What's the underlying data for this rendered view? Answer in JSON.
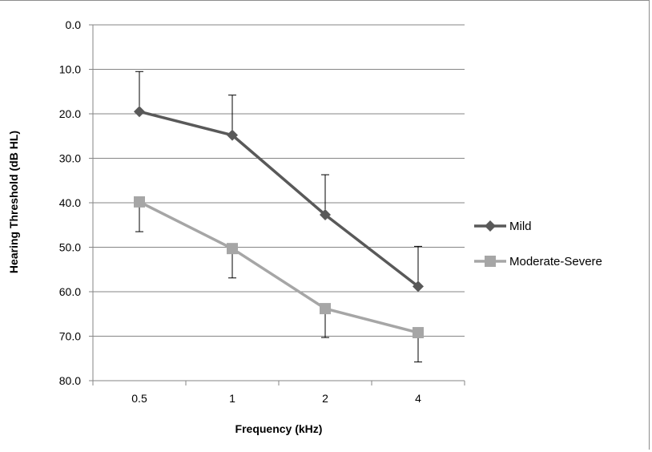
{
  "chart_data": {
    "type": "line",
    "categories": [
      "0.5",
      "1",
      "2",
      "4"
    ],
    "xlabel": "Frequency (kHz)",
    "ylabel": "Hearing Threshold (dB HL)",
    "ylim": [
      0,
      80
    ],
    "y_reversed": true,
    "y_ticks": [
      "0.0",
      "10.0",
      "20.0",
      "30.0",
      "40.0",
      "50.0",
      "60.0",
      "70.0",
      "80.0"
    ],
    "grid": "horizontal",
    "legend_position": "right",
    "series": [
      {
        "name": "Mild",
        "values": [
          19.5,
          24.8,
          42.7,
          58.8
        ],
        "error": [
          9.0,
          9.0,
          9.0,
          9.0
        ],
        "error_direction": "lower-threshold",
        "marker": "diamond",
        "color": "#595959"
      },
      {
        "name": "Moderate-Severe",
        "values": [
          39.8,
          50.3,
          63.8,
          69.2
        ],
        "error": [
          6.7,
          6.6,
          6.5,
          6.6
        ],
        "error_direction": "higher-threshold",
        "marker": "square",
        "color": "#a6a6a6"
      }
    ]
  }
}
